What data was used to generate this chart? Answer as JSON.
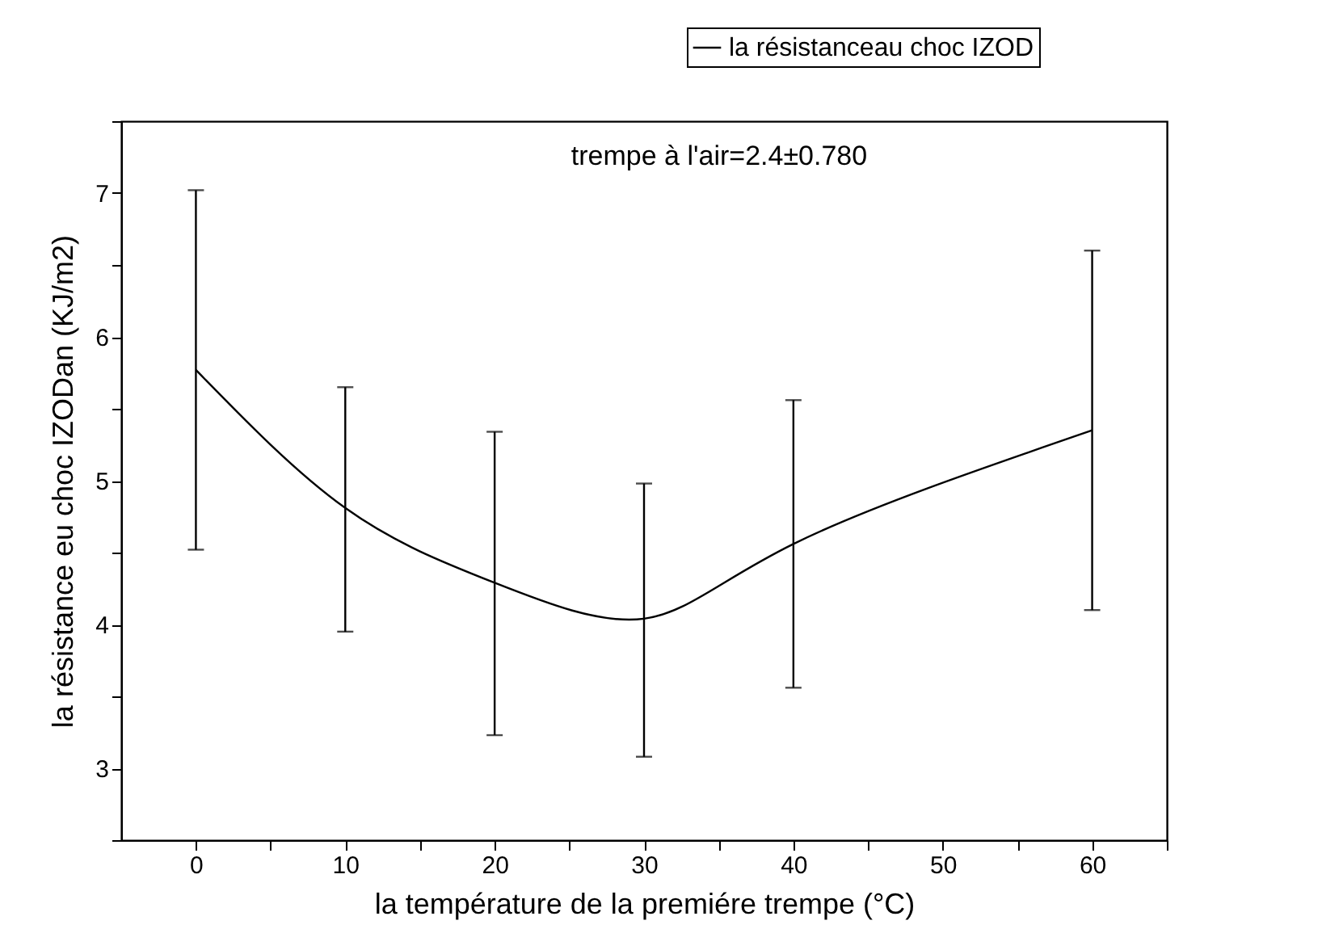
{
  "chart_data": {
    "type": "line",
    "xlabel": "la température de la premiére trempe (°C)",
    "ylabel": "la résistance eu choc IZODan (KJ/m2)",
    "x": [
      0,
      10,
      20,
      30,
      40,
      60
    ],
    "series": [
      {
        "name": "la résistanceau choc IZOD",
        "color": "#000000",
        "values": [
          5.77,
          4.81,
          4.29,
          4.04,
          4.56,
          5.35
        ],
        "errors": [
          [
            4.52,
            7.02
          ],
          [
            3.95,
            5.65
          ],
          [
            3.23,
            5.34
          ],
          [
            3.08,
            4.98
          ],
          [
            3.56,
            5.56
          ],
          [
            4.1,
            6.6
          ]
        ]
      }
    ],
    "xlim": [
      -5,
      65
    ],
    "xticks": [
      0,
      {
        "value": 5,
        "label": null
      },
      10,
      {
        "value": 15,
        "label": null
      },
      20,
      {
        "value": 25,
        "label": null
      },
      30,
      {
        "value": 35,
        "label": null
      },
      40,
      {
        "value": 45,
        "label": null
      },
      50,
      {
        "value": 55,
        "label": null
      },
      60,
      {
        "value": 65,
        "label": null
      }
    ],
    "ylim": [
      2.5,
      7.5
    ],
    "yticks": [
      {
        "value": 2.5,
        "label": null
      },
      3,
      {
        "value": 3.5,
        "label": null
      },
      4,
      {
        "value": 4.5,
        "label": null
      },
      5,
      {
        "value": 5.5,
        "label": null
      },
      6,
      {
        "value": 6.5,
        "label": null
      },
      7,
      {
        "value": 7.5,
        "label": null
      }
    ],
    "grid": false,
    "legend": "top right",
    "annotations": [
      "trempe à l'air=2.4±0.780"
    ]
  }
}
